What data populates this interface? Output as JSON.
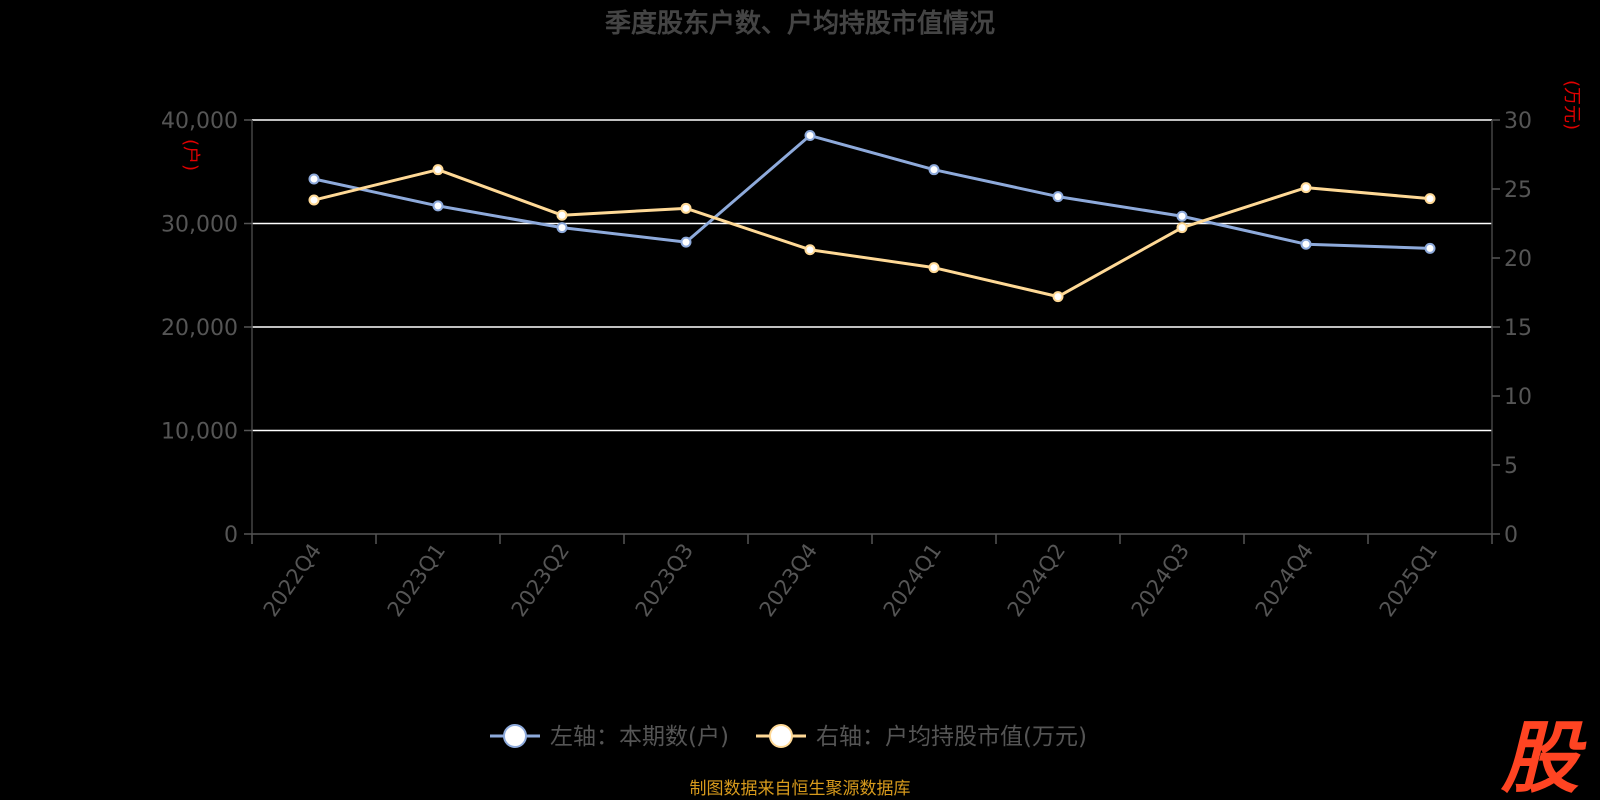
{
  "colors": {
    "left_series": "#8eaadb",
    "right_series": "#ffd996",
    "unit": "#e00000",
    "source": "#d79a1c",
    "logo": "#ff4422",
    "grid": "#ffffff"
  },
  "source_note": "制图数据来自恒生聚源数据库",
  "logo_char": "股",
  "chart_data": {
    "type": "line",
    "title": "季度股东户数、户均持股市值情况",
    "categories": [
      "2022Q4",
      "2023Q1",
      "2023Q2",
      "2023Q3",
      "2023Q4",
      "2024Q1",
      "2024Q2",
      "2024Q3",
      "2024Q4",
      "2025Q1"
    ],
    "left_axis": {
      "unit": "(户)",
      "ylim": [
        0,
        40000
      ],
      "ticks": [
        "0",
        "10,000",
        "20,000",
        "30,000",
        "40,000"
      ],
      "tick_values": [
        0,
        10000,
        20000,
        30000,
        40000
      ]
    },
    "right_axis": {
      "unit": "(万元)",
      "ylim": [
        0,
        30
      ],
      "ticks": [
        "0",
        "5",
        "10",
        "15",
        "20",
        "25",
        "30"
      ],
      "tick_values": [
        0,
        5,
        10,
        15,
        20,
        25,
        30
      ]
    },
    "grid": true,
    "legend_position": "bottom-center",
    "series": [
      {
        "name": "左轴：本期数(户)",
        "axis": "left",
        "color": "#8eaadb",
        "values": [
          34300,
          31700,
          29600,
          28200,
          38500,
          35200,
          32600,
          30700,
          28000,
          27600
        ]
      },
      {
        "name": "右轴：户均持股市值(万元)",
        "axis": "right",
        "color": "#ffd996",
        "values": [
          24.2,
          26.4,
          23.1,
          23.6,
          20.6,
          19.3,
          17.2,
          22.2,
          25.1,
          24.3
        ]
      }
    ]
  }
}
